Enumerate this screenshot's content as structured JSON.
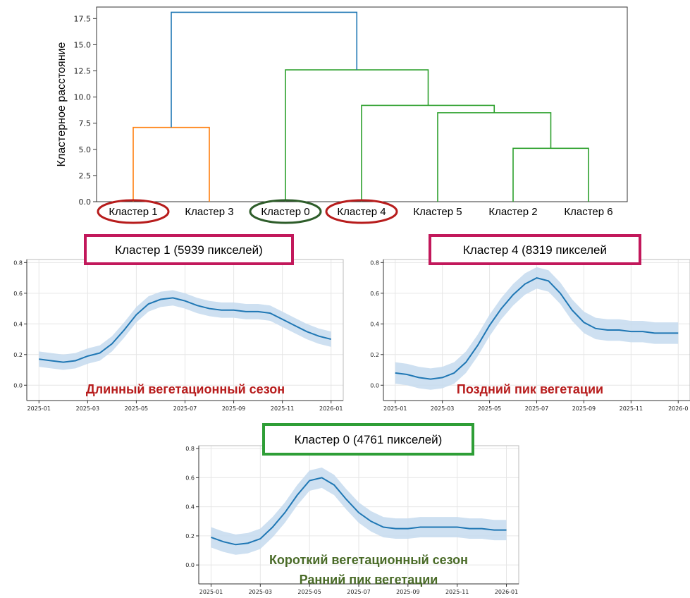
{
  "colors": {
    "blue": "#1f77b4",
    "orange": "#ff7f0e",
    "green": "#2ca02c",
    "band": "#c6dbef",
    "pink_box": "#c2185b",
    "green_box": "#2e9e36",
    "red_text": "#b71c1c",
    "green_text": "#4a6b28",
    "red_ellipse": "#b71c1c",
    "dark_green_ellipse": "#2e5d2a"
  },
  "chart_data": [
    {
      "type": "dendrogram",
      "ylabel": "Кластерное расстояние",
      "ylim": [
        0,
        18.6
      ],
      "yticks": [
        "0.0",
        "2.5",
        "5.0",
        "7.5",
        "10.0",
        "12.5",
        "15.0",
        "17.5"
      ],
      "leaves": [
        "Кластер 1",
        "Кластер 3",
        "Кластер 0",
        "Кластер 4",
        "Кластер 5",
        "Кластер 2",
        "Кластер 6"
      ],
      "highlighted_leaves": [
        {
          "leaf": "Кластер 1",
          "color": "red"
        },
        {
          "leaf": "Кластер 0",
          "color": "dark-green"
        },
        {
          "leaf": "Кластер 4",
          "color": "red"
        }
      ],
      "links": [
        {
          "left": 1,
          "right": 2,
          "height": 7.1,
          "color": "orange"
        },
        {
          "left": 6,
          "right": 7,
          "height": 5.1,
          "color": "green"
        },
        {
          "left": 5,
          "right": 6.5,
          "height": 8.5,
          "color": "green"
        },
        {
          "left": 4,
          "right": 5.75,
          "height": 9.2,
          "color": "green"
        },
        {
          "left": 3,
          "right": 4.875,
          "height": 12.6,
          "color": "green"
        },
        {
          "left": 1.5,
          "right": 3.9375,
          "height": 18.1,
          "color": "blue"
        }
      ]
    },
    {
      "type": "line",
      "title": "Кластер 1 (5939 пикселей)",
      "subtitle": "Длинный вегетационный сезон",
      "ylim": [
        -0.1,
        0.82
      ],
      "yticks": [
        "0.0",
        "0.2",
        "0.4",
        "0.6",
        "0.8"
      ],
      "xlim": [
        -0.5,
        12.5
      ],
      "xticks": [
        "2025-01",
        "2025-03",
        "2025-05",
        "2025-07",
        "2025-09",
        "2025-11",
        "2026-01"
      ],
      "grid": true,
      "x": [
        0,
        0.5,
        1,
        1.5,
        2,
        2.5,
        3,
        3.5,
        4,
        4.5,
        5,
        5.5,
        6,
        6.5,
        7,
        7.5,
        8,
        8.5,
        9,
        9.5,
        10,
        10.5,
        11,
        11.5,
        12
      ],
      "values": [
        0.17,
        0.16,
        0.15,
        0.16,
        0.19,
        0.21,
        0.27,
        0.36,
        0.46,
        0.53,
        0.56,
        0.57,
        0.55,
        0.52,
        0.5,
        0.49,
        0.49,
        0.48,
        0.48,
        0.47,
        0.43,
        0.39,
        0.35,
        0.32,
        0.3
      ],
      "band": 0.05
    },
    {
      "type": "line",
      "title": "Кластер 4 (8319 пикселей",
      "subtitle": "Поздний пик вегетации",
      "ylim": [
        -0.1,
        0.82
      ],
      "yticks": [
        "0.0",
        "0.2",
        "0.4",
        "0.6",
        "0.8"
      ],
      "xlim": [
        -0.5,
        12.5
      ],
      "xticks": [
        "2025-01",
        "2025-03",
        "2025-05",
        "2025-07",
        "2025-09",
        "2025-11",
        "2026-0"
      ],
      "grid": true,
      "x": [
        0,
        0.5,
        1,
        1.5,
        2,
        2.5,
        3,
        3.5,
        4,
        4.5,
        5,
        5.5,
        6,
        6.5,
        7,
        7.5,
        8,
        8.5,
        9,
        9.5,
        10,
        10.5,
        11,
        11.5,
        12
      ],
      "values": [
        0.08,
        0.07,
        0.05,
        0.04,
        0.05,
        0.08,
        0.15,
        0.26,
        0.39,
        0.5,
        0.59,
        0.66,
        0.7,
        0.68,
        0.6,
        0.49,
        0.41,
        0.37,
        0.36,
        0.36,
        0.35,
        0.35,
        0.34,
        0.34,
        0.34
      ],
      "band": 0.07
    },
    {
      "type": "line",
      "title": "Кластер 0 (4761 пикселей)",
      "subtitle": [
        "Короткий вегетационный сезон",
        "Ранний пик вегетации"
      ],
      "ylim": [
        -0.13,
        0.82
      ],
      "yticks": [
        "0.0",
        "0.2",
        "0.4",
        "0.6",
        "0.8"
      ],
      "xlim": [
        -0.5,
        12.5
      ],
      "xticks": [
        "2025-01",
        "2025-03",
        "2025-05",
        "2025-07",
        "2025-09",
        "2025-11",
        "2026-01"
      ],
      "grid": true,
      "x": [
        0,
        0.5,
        1,
        1.5,
        2,
        2.5,
        3,
        3.5,
        4,
        4.5,
        5,
        5.5,
        6,
        6.5,
        7,
        7.5,
        8,
        8.5,
        9,
        9.5,
        10,
        10.5,
        11,
        11.5,
        12
      ],
      "values": [
        0.19,
        0.16,
        0.14,
        0.15,
        0.18,
        0.26,
        0.36,
        0.48,
        0.58,
        0.6,
        0.55,
        0.45,
        0.36,
        0.3,
        0.26,
        0.25,
        0.25,
        0.26,
        0.26,
        0.26,
        0.26,
        0.25,
        0.25,
        0.24,
        0.24
      ],
      "band": 0.07
    }
  ]
}
